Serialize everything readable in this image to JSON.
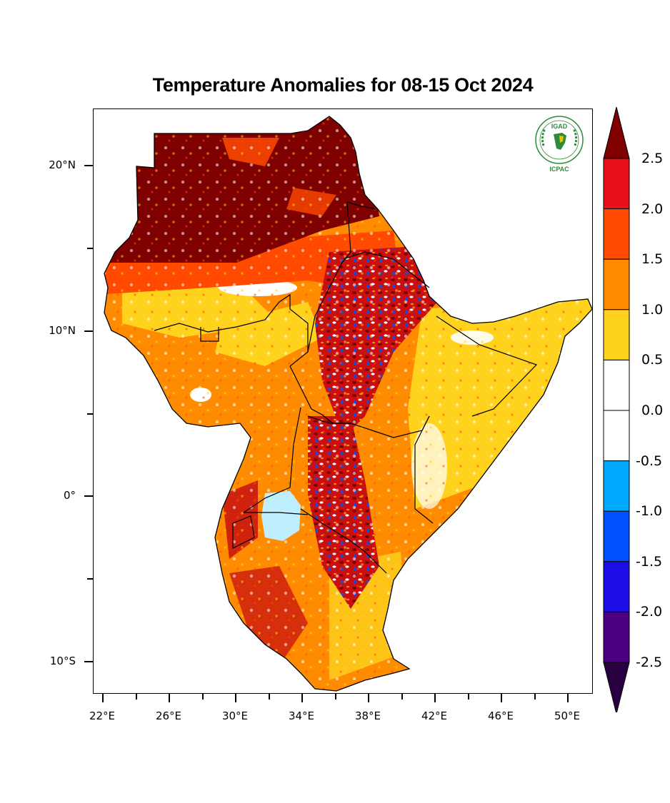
{
  "title": "Temperature Anomalies for 08-15 Oct 2024",
  "logo": {
    "top_text": "IGAD",
    "bottom_text": "ICPAC"
  },
  "axes": {
    "y_labels": [
      "20°N",
      "10°N",
      "0°",
      "10°S"
    ],
    "x_labels": [
      "22°E",
      "26°E",
      "30°E",
      "34°E",
      "38°E",
      "42°E",
      "46°E",
      "50°E"
    ]
  },
  "colorbar": {
    "labels": [
      "2.5",
      "2.0",
      "1.5",
      "1.0",
      "0.5",
      "0.0",
      "-0.5",
      "-1.0",
      "-1.5",
      "-2.0",
      "-2.5"
    ],
    "colors": [
      "#800000",
      "#e8101a",
      "#ff4a00",
      "#ff8c00",
      "#ffd21e",
      "#ffffff",
      "#ffffff",
      "#00aaff",
      "#0050ff",
      "#1c0ce6",
      "#4a0080",
      "#2a0040"
    ]
  },
  "palette": {
    "dark_red": "#7f0000",
    "red": "#d7191c",
    "orange_red": "#ff4a00",
    "orange": "#ff8c00",
    "yellow": "#ffd21e",
    "light_blue": "#bfefff",
    "blue": "#0050ff",
    "logo_green": "#2e8b3a"
  }
}
